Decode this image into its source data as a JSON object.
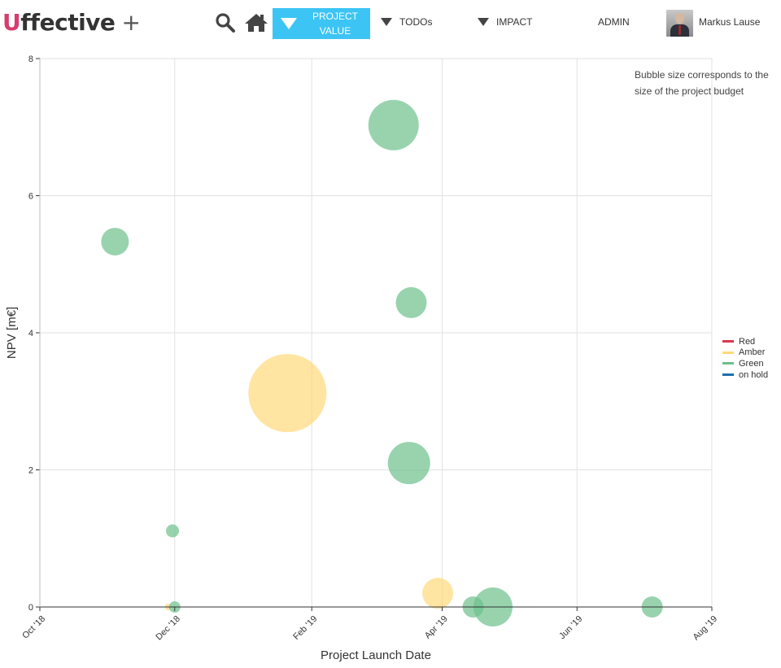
{
  "header": {
    "logo": {
      "u": "U",
      "rest": "ffective",
      "plus": "+"
    },
    "nav": {
      "active_label_line1": "PROJECT",
      "active_label_line2": "VALUE",
      "todos": "TODOs",
      "impact": "IMPACT",
      "admin": "ADMIN"
    },
    "user": {
      "name": "Markus Lause"
    },
    "icons": [
      "search-icon",
      "home-icon",
      "triangle-down-icon",
      "user-avatar"
    ]
  },
  "note": {
    "line1": "Bubble size corresponds to the",
    "line2": "size of the project budget"
  },
  "colors": {
    "red": "#d9394b",
    "amber": "#ffd97a",
    "green": "#6cc08b",
    "on_hold": "#1a6fb0",
    "accent": "#3cc4f5"
  },
  "chart_data": {
    "type": "scatter",
    "subtype": "bubble",
    "xlabel": "Project Launch Date",
    "ylabel": "NPV [m€]",
    "xlim": [
      "2018-10-01",
      "2019-08-01"
    ],
    "ylim": [
      0,
      8
    ],
    "x_ticks": [
      {
        "date": "2018-10-01",
        "label": "Oct '18"
      },
      {
        "date": "2018-12-01",
        "label": "Dec '18"
      },
      {
        "date": "2019-02-01",
        "label": "Feb '19"
      },
      {
        "date": "2019-04-01",
        "label": "Apr '19"
      },
      {
        "date": "2019-06-01",
        "label": "Jun '19"
      },
      {
        "date": "2019-08-01",
        "label": "Aug '19"
      }
    ],
    "y_ticks": [
      0,
      2,
      4,
      6,
      8
    ],
    "grid": true,
    "legend_position": "right",
    "series": [
      {
        "name": "Red",
        "color": "#d9394b",
        "points": []
      },
      {
        "name": "Amber",
        "color": "#ffd97a",
        "points": [
          {
            "x": "2018-11-28",
            "y": 0.0,
            "size": 4
          },
          {
            "x": "2019-01-21",
            "y": 3.12,
            "size": 48
          },
          {
            "x": "2019-03-30",
            "y": 0.2,
            "size": 19
          }
        ]
      },
      {
        "name": "Green",
        "color": "#6cc08b",
        "points": [
          {
            "x": "2018-11-04",
            "y": 5.33,
            "size": 17
          },
          {
            "x": "2018-11-30",
            "y": 1.11,
            "size": 8
          },
          {
            "x": "2018-12-01",
            "y": 0.0,
            "size": 7
          },
          {
            "x": "2019-03-10",
            "y": 7.03,
            "size": 31
          },
          {
            "x": "2019-03-18",
            "y": 4.44,
            "size": 19
          },
          {
            "x": "2019-03-17",
            "y": 2.1,
            "size": 26
          },
          {
            "x": "2019-04-15",
            "y": 0.0,
            "size": 13
          },
          {
            "x": "2019-04-24",
            "y": 0.0,
            "size": 24
          },
          {
            "x": "2019-07-05",
            "y": 0.0,
            "size": 13
          }
        ]
      },
      {
        "name": "on hold",
        "color": "#1a6fb0",
        "points": []
      }
    ]
  }
}
